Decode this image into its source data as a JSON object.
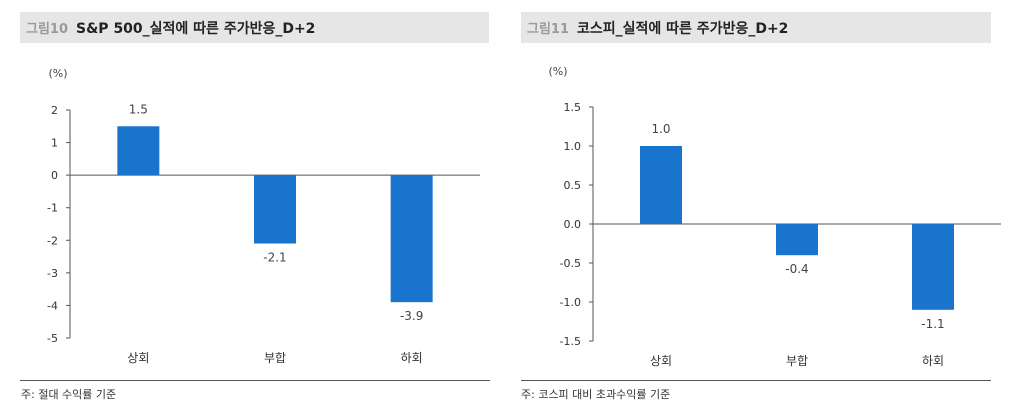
{
  "charts": [
    {
      "label": "그림10",
      "title": "S&P 500_실적에 따른 주가반응_D+2",
      "note": "주: 절대 수익률 기준",
      "chart_data": {
        "type": "bar",
        "title": "S&P 500_실적에 따른 주가반응_D+2",
        "unit": "(%)",
        "categories": [
          "상회",
          "부합",
          "하회"
        ],
        "values": [
          1.5,
          -2.1,
          -3.9
        ],
        "value_labels": [
          "1.5",
          "-2.1",
          "-3.9"
        ],
        "ylim": [
          -5,
          2
        ],
        "yticks": [
          "2",
          "1",
          "0",
          "-1",
          "-2",
          "-3",
          "-4",
          "-5"
        ],
        "ytick_values": [
          2,
          1,
          0,
          -1,
          -2,
          -3,
          -4,
          -5
        ],
        "bar_color": "#1874cd",
        "grid": false
      }
    },
    {
      "label": "그림11",
      "title": "코스피_실적에 따른 주가반응_D+2",
      "note": "주: 코스피 대비 초과수익률 기준",
      "chart_data": {
        "type": "bar",
        "title": "코스피_실적에 따른 주가반응_D+2",
        "unit": "(%)",
        "categories": [
          "상회",
          "부합",
          "하회"
        ],
        "values": [
          1.0,
          -0.4,
          -1.1
        ],
        "value_labels": [
          "1.0",
          "-0.4",
          "-1.1"
        ],
        "ylim": [
          -1.5,
          1.5
        ],
        "yticks": [
          "1.5",
          "1.0",
          "0.5",
          "0.0",
          "-0.5",
          "-1.0",
          "-1.5"
        ],
        "ytick_values": [
          1.5,
          1.0,
          0.5,
          0.0,
          -0.5,
          -1.0,
          -1.5
        ],
        "bar_color": "#1874cd",
        "grid": false
      }
    }
  ]
}
